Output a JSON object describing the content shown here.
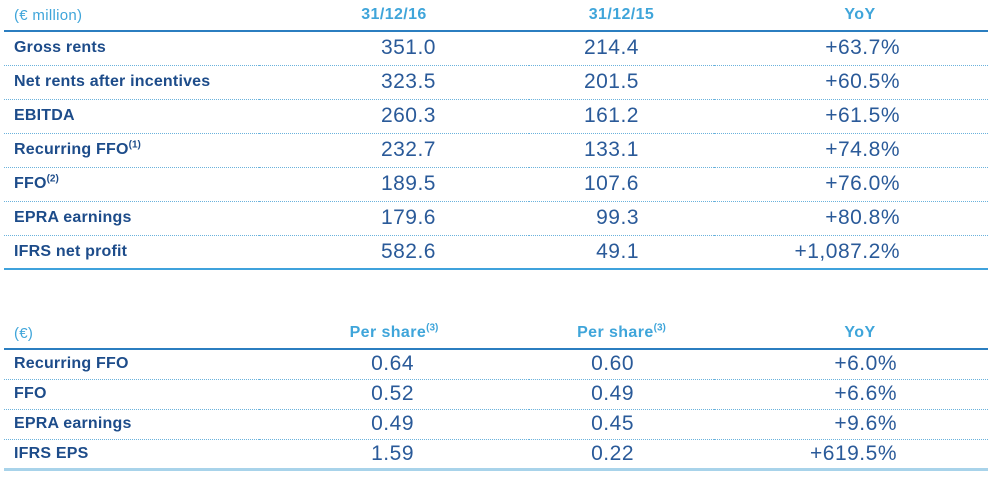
{
  "colors": {
    "accent_light_blue": "#3FA5DA",
    "label_navy": "#1D4C8A",
    "value_blue": "#2A5A99",
    "rule_solid": "#2B7EC0",
    "rule_dotted": "#6AB2DC",
    "table1_bottom_rule": "#3FA2DC",
    "table2_bottom_rule": "#A8D3EA"
  },
  "table1": {
    "unit_label": "(€ million)",
    "columns": [
      "31/12/16",
      "31/12/15",
      "YoY"
    ],
    "rows": [
      {
        "label": "Gross rents",
        "sup": "",
        "values": [
          "351.0",
          "214.4",
          "+63.7%"
        ]
      },
      {
        "label": "Net rents after incentives",
        "sup": "",
        "values": [
          "323.5",
          "201.5",
          "+60.5%"
        ]
      },
      {
        "label": "EBITDA",
        "sup": "",
        "values": [
          "260.3",
          "161.2",
          "+61.5%"
        ]
      },
      {
        "label": "Recurring FFO",
        "sup": "(1)",
        "values": [
          "232.7",
          "133.1",
          "+74.8%"
        ]
      },
      {
        "label": "FFO",
        "sup": "(2)",
        "values": [
          "189.5",
          "107.6",
          "+76.0%"
        ]
      },
      {
        "label": "EPRA earnings",
        "sup": "",
        "values": [
          "179.6",
          "99.3",
          "+80.8%"
        ]
      },
      {
        "label": "IFRS net profit",
        "sup": "",
        "values": [
          "582.6",
          "49.1",
          "+1,087.2%"
        ]
      }
    ]
  },
  "table2": {
    "unit_label": "(€)",
    "columns": [
      {
        "text": "Per share",
        "sup": "(3)"
      },
      {
        "text": "Per share",
        "sup": "(3)"
      },
      {
        "text": "YoY",
        "sup": ""
      }
    ],
    "rows": [
      {
        "label": "Recurring FFO",
        "sup": "",
        "values": [
          "0.64",
          "0.60",
          "+6.0%"
        ]
      },
      {
        "label": "FFO",
        "sup": "",
        "values": [
          "0.52",
          "0.49",
          "+6.6%"
        ]
      },
      {
        "label": "EPRA earnings",
        "sup": "",
        "values": [
          "0.49",
          "0.45",
          "+9.6%"
        ]
      },
      {
        "label": "IFRS EPS",
        "sup": "",
        "values": [
          "1.59",
          "0.22",
          "+619.5%"
        ]
      }
    ]
  }
}
